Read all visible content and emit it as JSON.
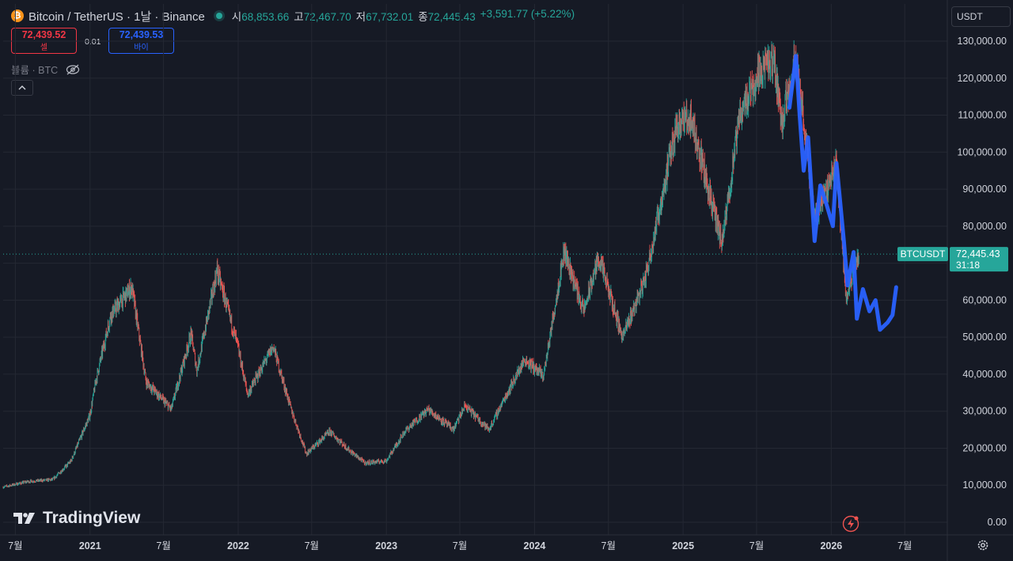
{
  "header": {
    "symbol_title": "Bitcoin / TetherUS · 1날 · Binance",
    "ohlc": [
      {
        "label": "시",
        "value": "68,853.66"
      },
      {
        "label": "고",
        "value": "72,467.70"
      },
      {
        "label": "저",
        "value": "67,732.01"
      },
      {
        "label": "종",
        "value": "72,445.43"
      }
    ],
    "change": "+3,591.77 (+5.22%)"
  },
  "trade": {
    "sell_price": "72,439.52",
    "sell_label": "셀",
    "spread": "0.01",
    "buy_price": "72,439.53",
    "buy_label": "바이"
  },
  "volume_label": "볼륨 · BTC",
  "currency": "USDT",
  "price_label": {
    "symbol": "BTCUSDT",
    "price": "72,445.43",
    "countdown": "31:18"
  },
  "watermark": "TradingView",
  "colors": {
    "up": "#26a69a",
    "down": "#ef5350",
    "projection": "#2962ff",
    "background": "#161a25",
    "grid": "#242833"
  },
  "chart_data": {
    "type": "candlestick",
    "title": "Bitcoin / TetherUS · 1날 · Binance",
    "y_ticks": [
      "0.00",
      "10,000.00",
      "20,000.00",
      "30,000.00",
      "40,000.00",
      "50,000.00",
      "60,000.00",
      "70,000.00",
      "80,000.00",
      "90,000.00",
      "100,000.00",
      "110,000.00",
      "120,000.00",
      "130,000.00"
    ],
    "ylim": [
      0,
      130000
    ],
    "x_ticks": [
      {
        "label": "7월",
        "year": false
      },
      {
        "label": "2021",
        "year": true
      },
      {
        "label": "7월",
        "year": false
      },
      {
        "label": "2022",
        "year": true
      },
      {
        "label": "7월",
        "year": false
      },
      {
        "label": "2023",
        "year": true
      },
      {
        "label": "7월",
        "year": false
      },
      {
        "label": "2024",
        "year": true
      },
      {
        "label": "7월",
        "year": false
      },
      {
        "label": "2025",
        "year": true
      },
      {
        "label": "7월",
        "year": false
      },
      {
        "label": "2026",
        "year": true
      },
      {
        "label": "7월",
        "year": false
      }
    ],
    "x_range": [
      "2020-06",
      "2026-09"
    ],
    "current_price": 72445.43,
    "price_series": [
      [
        "2020-06-01",
        9500
      ],
      [
        "2020-08-01",
        11000
      ],
      [
        "2020-10-01",
        11500
      ],
      [
        "2020-11-15",
        16500
      ],
      [
        "2021-01-01",
        29000
      ],
      [
        "2021-01-15",
        38000
      ],
      [
        "2021-02-21",
        56000
      ],
      [
        "2021-04-14",
        63500
      ],
      [
        "2021-05-19",
        38000
      ],
      [
        "2021-07-20",
        30500
      ],
      [
        "2021-09-07",
        51000
      ],
      [
        "2021-09-21",
        41000
      ],
      [
        "2021-11-10",
        68000
      ],
      [
        "2022-01-01",
        47000
      ],
      [
        "2022-01-24",
        34500
      ],
      [
        "2022-03-28",
        47500
      ],
      [
        "2022-05-10",
        31000
      ],
      [
        "2022-06-18",
        18500
      ],
      [
        "2022-08-15",
        24500
      ],
      [
        "2022-10-01",
        19500
      ],
      [
        "2022-11-09",
        16000
      ],
      [
        "2023-01-01",
        16600
      ],
      [
        "2023-02-15",
        24500
      ],
      [
        "2023-04-14",
        30500
      ],
      [
        "2023-06-15",
        25000
      ],
      [
        "2023-07-14",
        31500
      ],
      [
        "2023-09-11",
        25000
      ],
      [
        "2023-10-24",
        34500
      ],
      [
        "2023-12-08",
        44000
      ],
      [
        "2024-01-23",
        39500
      ],
      [
        "2024-03-14",
        73500
      ],
      [
        "2024-05-01",
        57000
      ],
      [
        "2024-06-07",
        71500
      ],
      [
        "2024-08-05",
        50000
      ],
      [
        "2024-09-30",
        66000
      ],
      [
        "2024-11-12",
        89000
      ],
      [
        "2024-12-17",
        108000
      ],
      [
        "2025-01-21",
        109000
      ],
      [
        "2025-04-07",
        75000
      ],
      [
        "2025-05-22",
        111000
      ],
      [
        "2025-07-14",
        123000
      ],
      [
        "2025-08-14",
        124000
      ],
      [
        "2025-09-01",
        108000
      ],
      [
        "2025-10-06",
        126000
      ],
      [
        "2025-11-21",
        82000
      ],
      [
        "2026-01-14",
        97000
      ],
      [
        "2026-02-06",
        61000
      ],
      [
        "2026-03-10",
        72445
      ]
    ],
    "projection_series": [
      [
        "2025-09-20",
        112000
      ],
      [
        "2025-10-06",
        126000
      ],
      [
        "2025-10-15",
        110000
      ],
      [
        "2025-10-25",
        95000
      ],
      [
        "2025-11-05",
        104000
      ],
      [
        "2025-11-21",
        76000
      ],
      [
        "2025-12-05",
        91000
      ],
      [
        "2025-12-20",
        86000
      ],
      [
        "2026-01-05",
        80000
      ],
      [
        "2026-01-14",
        97000
      ],
      [
        "2026-02-01",
        76000
      ],
      [
        "2026-02-10",
        64000
      ],
      [
        "2026-02-25",
        73000
      ],
      [
        "2026-03-05",
        55000
      ],
      [
        "2026-03-20",
        63000
      ],
      [
        "2026-04-05",
        57000
      ],
      [
        "2026-04-20",
        60000
      ],
      [
        "2026-05-01",
        52000
      ],
      [
        "2026-05-20",
        54000
      ],
      [
        "2026-06-01",
        56000
      ],
      [
        "2026-06-10",
        63500
      ]
    ]
  }
}
